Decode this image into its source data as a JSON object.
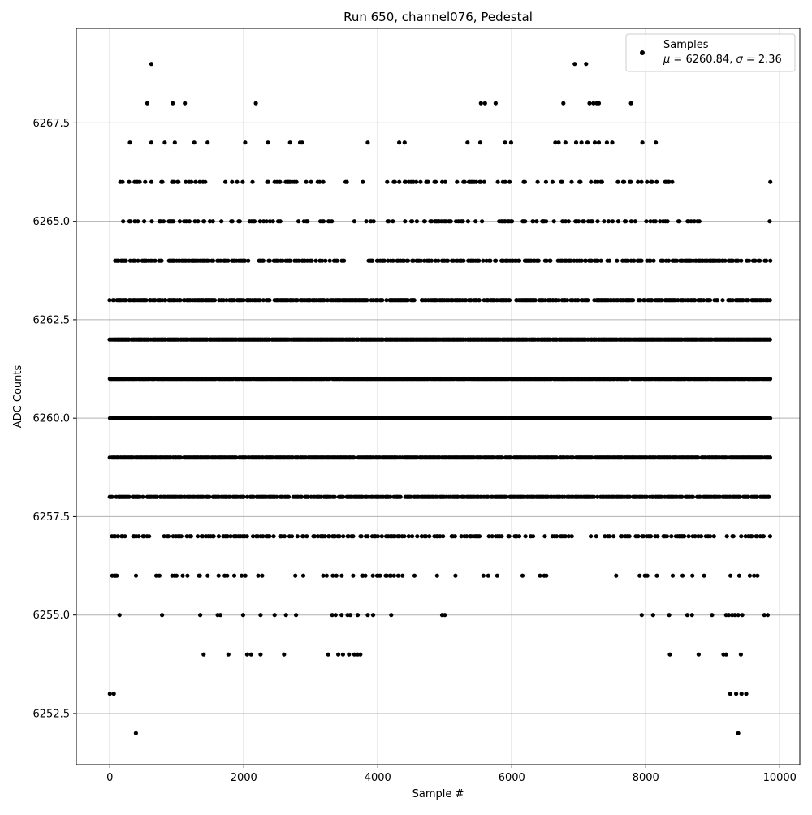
{
  "chart_data": {
    "type": "scatter",
    "title": "Run 650, channel076, Pedestal",
    "xlabel": "Sample #",
    "ylabel": "ADC Counts",
    "xlim": [
      -500,
      10300
    ],
    "ylim": [
      6251.2,
      6269.9
    ],
    "grid": true,
    "legend": {
      "placement": "top-right",
      "series_name": "Samples",
      "stats_prefix": "μ = 6260.84, ",
      "stats_sigma": "σ",
      "stats_suffix": " = 2.36"
    },
    "x_ticks": [
      {
        "value": 0,
        "label": "0"
      },
      {
        "value": 2000,
        "label": "2000"
      },
      {
        "value": 4000,
        "label": "4000"
      },
      {
        "value": 6000,
        "label": "6000"
      },
      {
        "value": 8000,
        "label": "8000"
      },
      {
        "value": 10000,
        "label": "10000"
      }
    ],
    "y_ticks": [
      {
        "value": 6252.5,
        "label": "6252.5"
      },
      {
        "value": 6255.0,
        "label": "6255.0"
      },
      {
        "value": 6257.5,
        "label": "6257.5"
      },
      {
        "value": 6260.0,
        "label": "6260.0"
      },
      {
        "value": 6262.5,
        "label": "6262.5"
      },
      {
        "value": 6265.0,
        "label": "6265.0"
      },
      {
        "value": 6267.5,
        "label": "6267.5"
      }
    ],
    "series": [
      {
        "name": "Samples",
        "color": "#000000",
        "mean": 6260.84,
        "sigma": 2.36,
        "n_points": 9850,
        "points": [
          [
            0,
            6253
          ],
          [
            60,
            6253
          ],
          [
            390,
            6252
          ],
          [
            9380,
            6252
          ],
          [
            9260,
            6253
          ],
          [
            9350,
            6253
          ],
          [
            9430,
            6253
          ],
          [
            9500,
            6253
          ],
          [
            620,
            6269
          ],
          [
            6940,
            6269
          ],
          [
            7110,
            6269
          ],
          [
            560,
            6268
          ],
          [
            940,
            6268
          ],
          [
            1120,
            6268
          ],
          [
            2180,
            6268
          ],
          [
            5540,
            6268
          ],
          [
            5600,
            6268
          ],
          [
            5760,
            6268
          ],
          [
            6770,
            6268
          ],
          [
            7160,
            6268
          ],
          [
            7220,
            6268
          ],
          [
            7270,
            6268
          ],
          [
            7300,
            6268
          ],
          [
            7780,
            6268
          ],
          [
            300,
            6267
          ],
          [
            620,
            6267
          ],
          [
            820,
            6267
          ],
          [
            970,
            6267
          ],
          [
            1260,
            6267
          ],
          [
            1460,
            6267
          ],
          [
            2020,
            6267
          ],
          [
            2360,
            6267
          ],
          [
            2690,
            6267
          ],
          [
            2840,
            6267
          ],
          [
            2870,
            6267
          ],
          [
            3850,
            6267
          ],
          [
            4320,
            6267
          ],
          [
            4400,
            6267
          ],
          [
            5340,
            6267
          ],
          [
            5530,
            6267
          ],
          [
            5900,
            6267
          ],
          [
            5990,
            6267
          ],
          [
            6650,
            6267
          ],
          [
            6700,
            6267
          ],
          [
            6800,
            6267
          ],
          [
            6960,
            6267
          ],
          [
            7040,
            6267
          ],
          [
            7130,
            6267
          ],
          [
            7240,
            6267
          ],
          [
            7300,
            6267
          ],
          [
            7420,
            6267
          ],
          [
            7500,
            6267
          ],
          [
            7950,
            6267
          ],
          [
            8150,
            6267
          ],
          [
            1400,
            6254
          ],
          [
            1770,
            6254
          ],
          [
            2050,
            6254
          ],
          [
            2110,
            6254
          ],
          [
            2250,
            6254
          ],
          [
            2600,
            6254
          ],
          [
            3260,
            6254
          ],
          [
            3410,
            6254
          ],
          [
            3480,
            6254
          ],
          [
            3570,
            6254
          ],
          [
            3650,
            6254
          ],
          [
            3700,
            6254
          ],
          [
            3740,
            6254
          ],
          [
            8360,
            6254
          ],
          [
            8790,
            6254
          ],
          [
            9160,
            6254
          ],
          [
            9200,
            6254
          ],
          [
            9420,
            6254
          ],
          [
            145,
            6255
          ],
          [
            780,
            6255
          ],
          [
            1350,
            6255
          ],
          [
            1610,
            6255
          ],
          [
            1650,
            6255
          ],
          [
            1990,
            6255
          ],
          [
            2250,
            6255
          ],
          [
            2460,
            6255
          ],
          [
            2630,
            6255
          ],
          [
            2780,
            6255
          ],
          [
            3320,
            6255
          ],
          [
            3370,
            6255
          ],
          [
            3460,
            6255
          ],
          [
            3550,
            6255
          ],
          [
            3590,
            6255
          ],
          [
            3700,
            6255
          ],
          [
            3850,
            6255
          ],
          [
            3930,
            6255
          ],
          [
            4200,
            6255
          ],
          [
            4960,
            6255
          ],
          [
            5000,
            6255
          ],
          [
            7940,
            6255
          ],
          [
            8110,
            6255
          ],
          [
            8350,
            6255
          ],
          [
            8620,
            6255
          ],
          [
            8690,
            6255
          ],
          [
            8990,
            6255
          ],
          [
            9200,
            6255
          ],
          [
            9240,
            6255
          ],
          [
            9290,
            6255
          ],
          [
            9330,
            6255
          ],
          [
            9380,
            6255
          ],
          [
            9440,
            6255
          ],
          [
            9770,
            6255
          ],
          [
            9820,
            6255
          ],
          [
            9860,
            6266
          ],
          [
            9850,
            6265
          ]
        ],
        "density_bands": [
          {
            "y": 6265,
            "fraction": 0.3,
            "x_start": 100,
            "x_end": 8950,
            "gap_start": 3320,
            "gap_end": 3820
          },
          {
            "y": 6264,
            "fraction": 0.5,
            "x_start": 20,
            "x_end": 9860,
            "gap_start": 3420,
            "gap_end": 3850
          },
          {
            "y": 6263,
            "fraction": 0.7,
            "x_start": 0,
            "x_end": 9860
          },
          {
            "y": 6262,
            "fraction": 0.95,
            "x_start": 0,
            "x_end": 9860
          },
          {
            "y": 6261,
            "fraction": 0.95,
            "x_start": 0,
            "x_end": 9860
          },
          {
            "y": 6260,
            "fraction": 0.95,
            "x_start": 0,
            "x_end": 9860
          },
          {
            "y": 6259,
            "fraction": 0.9,
            "x_start": 0,
            "x_end": 9860
          },
          {
            "y": 6258,
            "fraction": 0.75,
            "x_start": 0,
            "x_end": 9860
          },
          {
            "y": 6257,
            "fraction": 0.35,
            "x_start": 30,
            "x_end": 9860,
            "gap_start": 6900,
            "gap_end": 7300
          },
          {
            "y": 6256,
            "fraction": 0.12,
            "x_start": 20,
            "x_end": 9700,
            "gap_start": 6700,
            "gap_end": 7700
          },
          {
            "y": 6266,
            "fraction": 0.22,
            "x_start": 80,
            "x_end": 8500,
            "gap_start": 3300,
            "gap_end": 4200
          }
        ]
      }
    ]
  }
}
